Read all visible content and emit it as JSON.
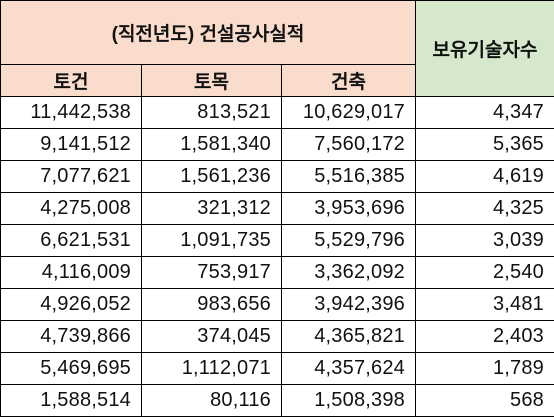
{
  "table": {
    "group_header": "(직전년도) 건설공사실적",
    "tech_header": "보유기술자수",
    "sub_headers": [
      "토건",
      "토목",
      "건축"
    ],
    "rows": [
      [
        "11,442,538",
        "813,521",
        "10,629,017",
        "4,347"
      ],
      [
        "9,141,512",
        "1,581,340",
        "7,560,172",
        "5,365"
      ],
      [
        "7,077,621",
        "1,561,236",
        "5,516,385",
        "4,619"
      ],
      [
        "4,275,008",
        "321,312",
        "3,953,696",
        "4,325"
      ],
      [
        "6,621,531",
        "1,091,735",
        "5,529,796",
        "3,039"
      ],
      [
        "4,116,009",
        "753,917",
        "3,362,092",
        "2,540"
      ],
      [
        "4,926,052",
        "983,656",
        "3,942,396",
        "3,481"
      ],
      [
        "4,739,866",
        "374,045",
        "4,365,821",
        "2,403"
      ],
      [
        "5,469,695",
        "1,112,071",
        "4,357,624",
        "1,789"
      ],
      [
        "1,588,514",
        "80,116",
        "1,508,398",
        "568"
      ]
    ]
  },
  "colors": {
    "header_peach": "#f9dccb",
    "header_green": "#d6e8cc",
    "border": "#000000"
  }
}
